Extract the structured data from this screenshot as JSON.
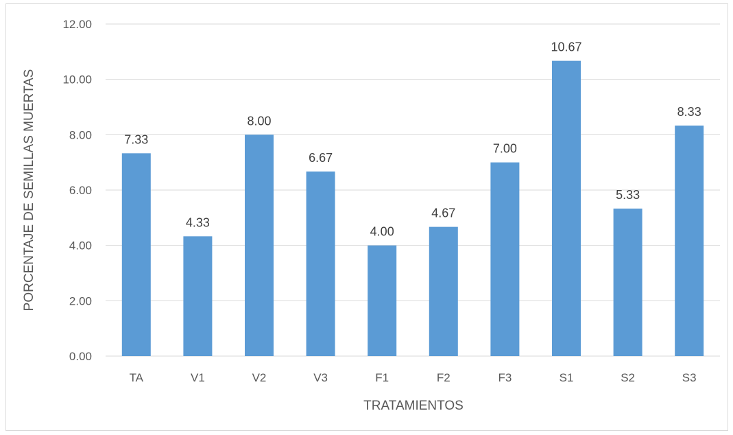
{
  "chart_data": {
    "type": "bar",
    "categories": [
      "TA",
      "V1",
      "V2",
      "V3",
      "F1",
      "F2",
      "F3",
      "S1",
      "S2",
      "S3"
    ],
    "values": [
      7.33,
      4.33,
      8.0,
      6.67,
      4.0,
      4.67,
      7.0,
      10.67,
      5.33,
      8.33
    ],
    "data_labels": [
      "7.33",
      "4.33",
      "8.00",
      "6.67",
      "4.00",
      "4.67",
      "7.00",
      "10.67",
      "5.33",
      "8.33"
    ],
    "xlabel": "TRATAMIENTOS",
    "ylabel": "PORCENTAJE DE SEMILLAS MUERTAS",
    "ylim": [
      0,
      12
    ],
    "yticks": [
      0,
      2,
      4,
      6,
      8,
      10,
      12
    ],
    "ytick_labels": [
      "0.00",
      "2.00",
      "4.00",
      "6.00",
      "8.00",
      "10.00",
      "12.00"
    ],
    "grid": "horizontal",
    "legend": "none",
    "colors": {
      "bar": "#5b9bd5",
      "grid": "#d9d9d9",
      "axis_text": "#595959",
      "label_text": "#404040"
    }
  }
}
